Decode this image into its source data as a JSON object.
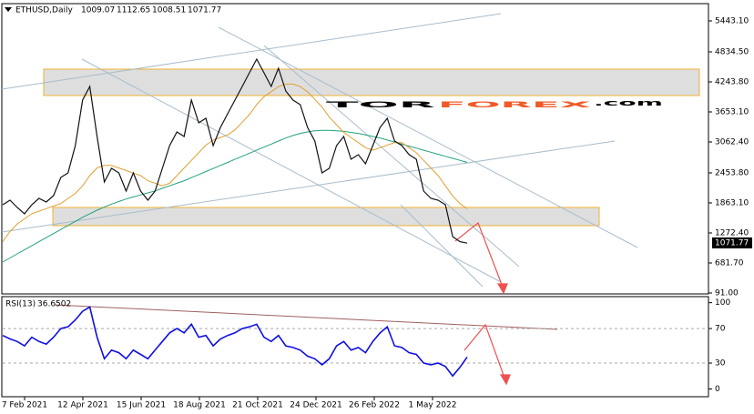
{
  "chart_data": {
    "type": "line",
    "title": "ETHUSD,Daily",
    "last_bar": {
      "open": 1009.07,
      "high": 1112.65,
      "low": 1008.51,
      "close": 1071.77
    },
    "date_labels": [
      "7 Feb 2021",
      "12 Apr 2021",
      "15 Jun 2021",
      "18 Aug 2021",
      "21 Oct 2021",
      "24 Dec 2021",
      "26 Feb 2022",
      "1 May 2022"
    ],
    "ylim": [
      91,
      5765
    ],
    "yticks": [
      {
        "value": 5443.1,
        "label": "5443.10"
      },
      {
        "value": 4834.5,
        "label": "4834.50"
      },
      {
        "value": 4243.8,
        "label": "4243.80"
      },
      {
        "value": 3653.1,
        "label": "3653.10"
      },
      {
        "value": 3062.4,
        "label": "3062.40"
      },
      {
        "value": 2453.8,
        "label": "2453.80"
      },
      {
        "value": 1863.1,
        "label": "1863.10"
      },
      {
        "value": 1272.4,
        "label": "1272.40"
      },
      {
        "value": 681.7,
        "label": "681.70"
      },
      {
        "value": 91,
        "label": "91.00"
      }
    ],
    "series": [
      {
        "color": "#111111",
        "values": [
          1827,
          1917,
          1774,
          1648,
          1827,
          1953,
          1881,
          2006,
          2364,
          2454,
          2991,
          3886,
          4154,
          3170,
          2275,
          2543,
          2454,
          2096,
          2454,
          2096,
          1917,
          2096,
          2543,
          2991,
          3259,
          3170,
          3886,
          3438,
          3528,
          2991,
          3349,
          3617,
          3886,
          4154,
          4423,
          4691,
          4423,
          4154,
          4512,
          4065,
          3886,
          3796,
          3349,
          3080,
          2454,
          2543,
          2991,
          3170,
          2722,
          2812,
          2633,
          2991,
          3349,
          3528,
          3080,
          2991,
          2812,
          2722,
          2096,
          1953,
          1917,
          1827,
          1200,
          1100,
          1072
        ]
      },
      {
        "color": "#e0a030",
        "values": [
          1100,
          1300,
          1450,
          1550,
          1650,
          1700,
          1750,
          1800,
          1850,
          1950,
          2050,
          2200,
          2400,
          2550,
          2600,
          2600,
          2550,
          2500,
          2450,
          2400,
          2300,
          2250,
          2200,
          2250,
          2400,
          2550,
          2700,
          2850,
          3000,
          3100,
          3150,
          3200,
          3300,
          3450,
          3600,
          3800,
          3950,
          4050,
          4150,
          4200,
          4200,
          4150,
          4050,
          3900,
          3750,
          3550,
          3400,
          3250,
          3150,
          3050,
          2950,
          2900,
          2950,
          3000,
          3050,
          3050,
          2950,
          2850,
          2700,
          2550,
          2400,
          2200,
          2000,
          1850,
          1750
        ]
      },
      {
        "color": "#20a080",
        "values": [
          700,
          780,
          860,
          940,
          1020,
          1100,
          1180,
          1260,
          1340,
          1420,
          1500,
          1580,
          1650,
          1720,
          1780,
          1840,
          1890,
          1940,
          1980,
          2020,
          2060,
          2100,
          2150,
          2200,
          2250,
          2300,
          2360,
          2420,
          2480,
          2540,
          2600,
          2660,
          2720,
          2780,
          2840,
          2900,
          2960,
          3020,
          3080,
          3140,
          3190,
          3230,
          3260,
          3280,
          3290,
          3290,
          3280,
          3270,
          3250,
          3230,
          3200,
          3170,
          3140,
          3100,
          3060,
          3020,
          2980,
          2940,
          2900,
          2860,
          2820,
          2780,
          2740,
          2700,
          2660
        ]
      }
    ],
    "rsi": {
      "label": "RSI(13)",
      "current": 36.6502,
      "color": "#1010e0",
      "ylim": [
        -9,
        107
      ],
      "yticks": [
        100,
        70,
        30,
        0
      ],
      "values": [
        62,
        58,
        55,
        50,
        60,
        55,
        52,
        60,
        70,
        72,
        80,
        90,
        95,
        60,
        35,
        45,
        42,
        35,
        45,
        40,
        35,
        45,
        55,
        65,
        70,
        65,
        75,
        60,
        62,
        50,
        58,
        62,
        65,
        70,
        72,
        75,
        60,
        55,
        62,
        50,
        48,
        45,
        38,
        35,
        28,
        35,
        50,
        55,
        45,
        48,
        42,
        55,
        65,
        72,
        50,
        48,
        42,
        40,
        30,
        28,
        30,
        26,
        15,
        25,
        37
      ]
    }
  },
  "watermark": {
    "tor": "TOR",
    "forex": "FOREX",
    "com": ".com"
  }
}
